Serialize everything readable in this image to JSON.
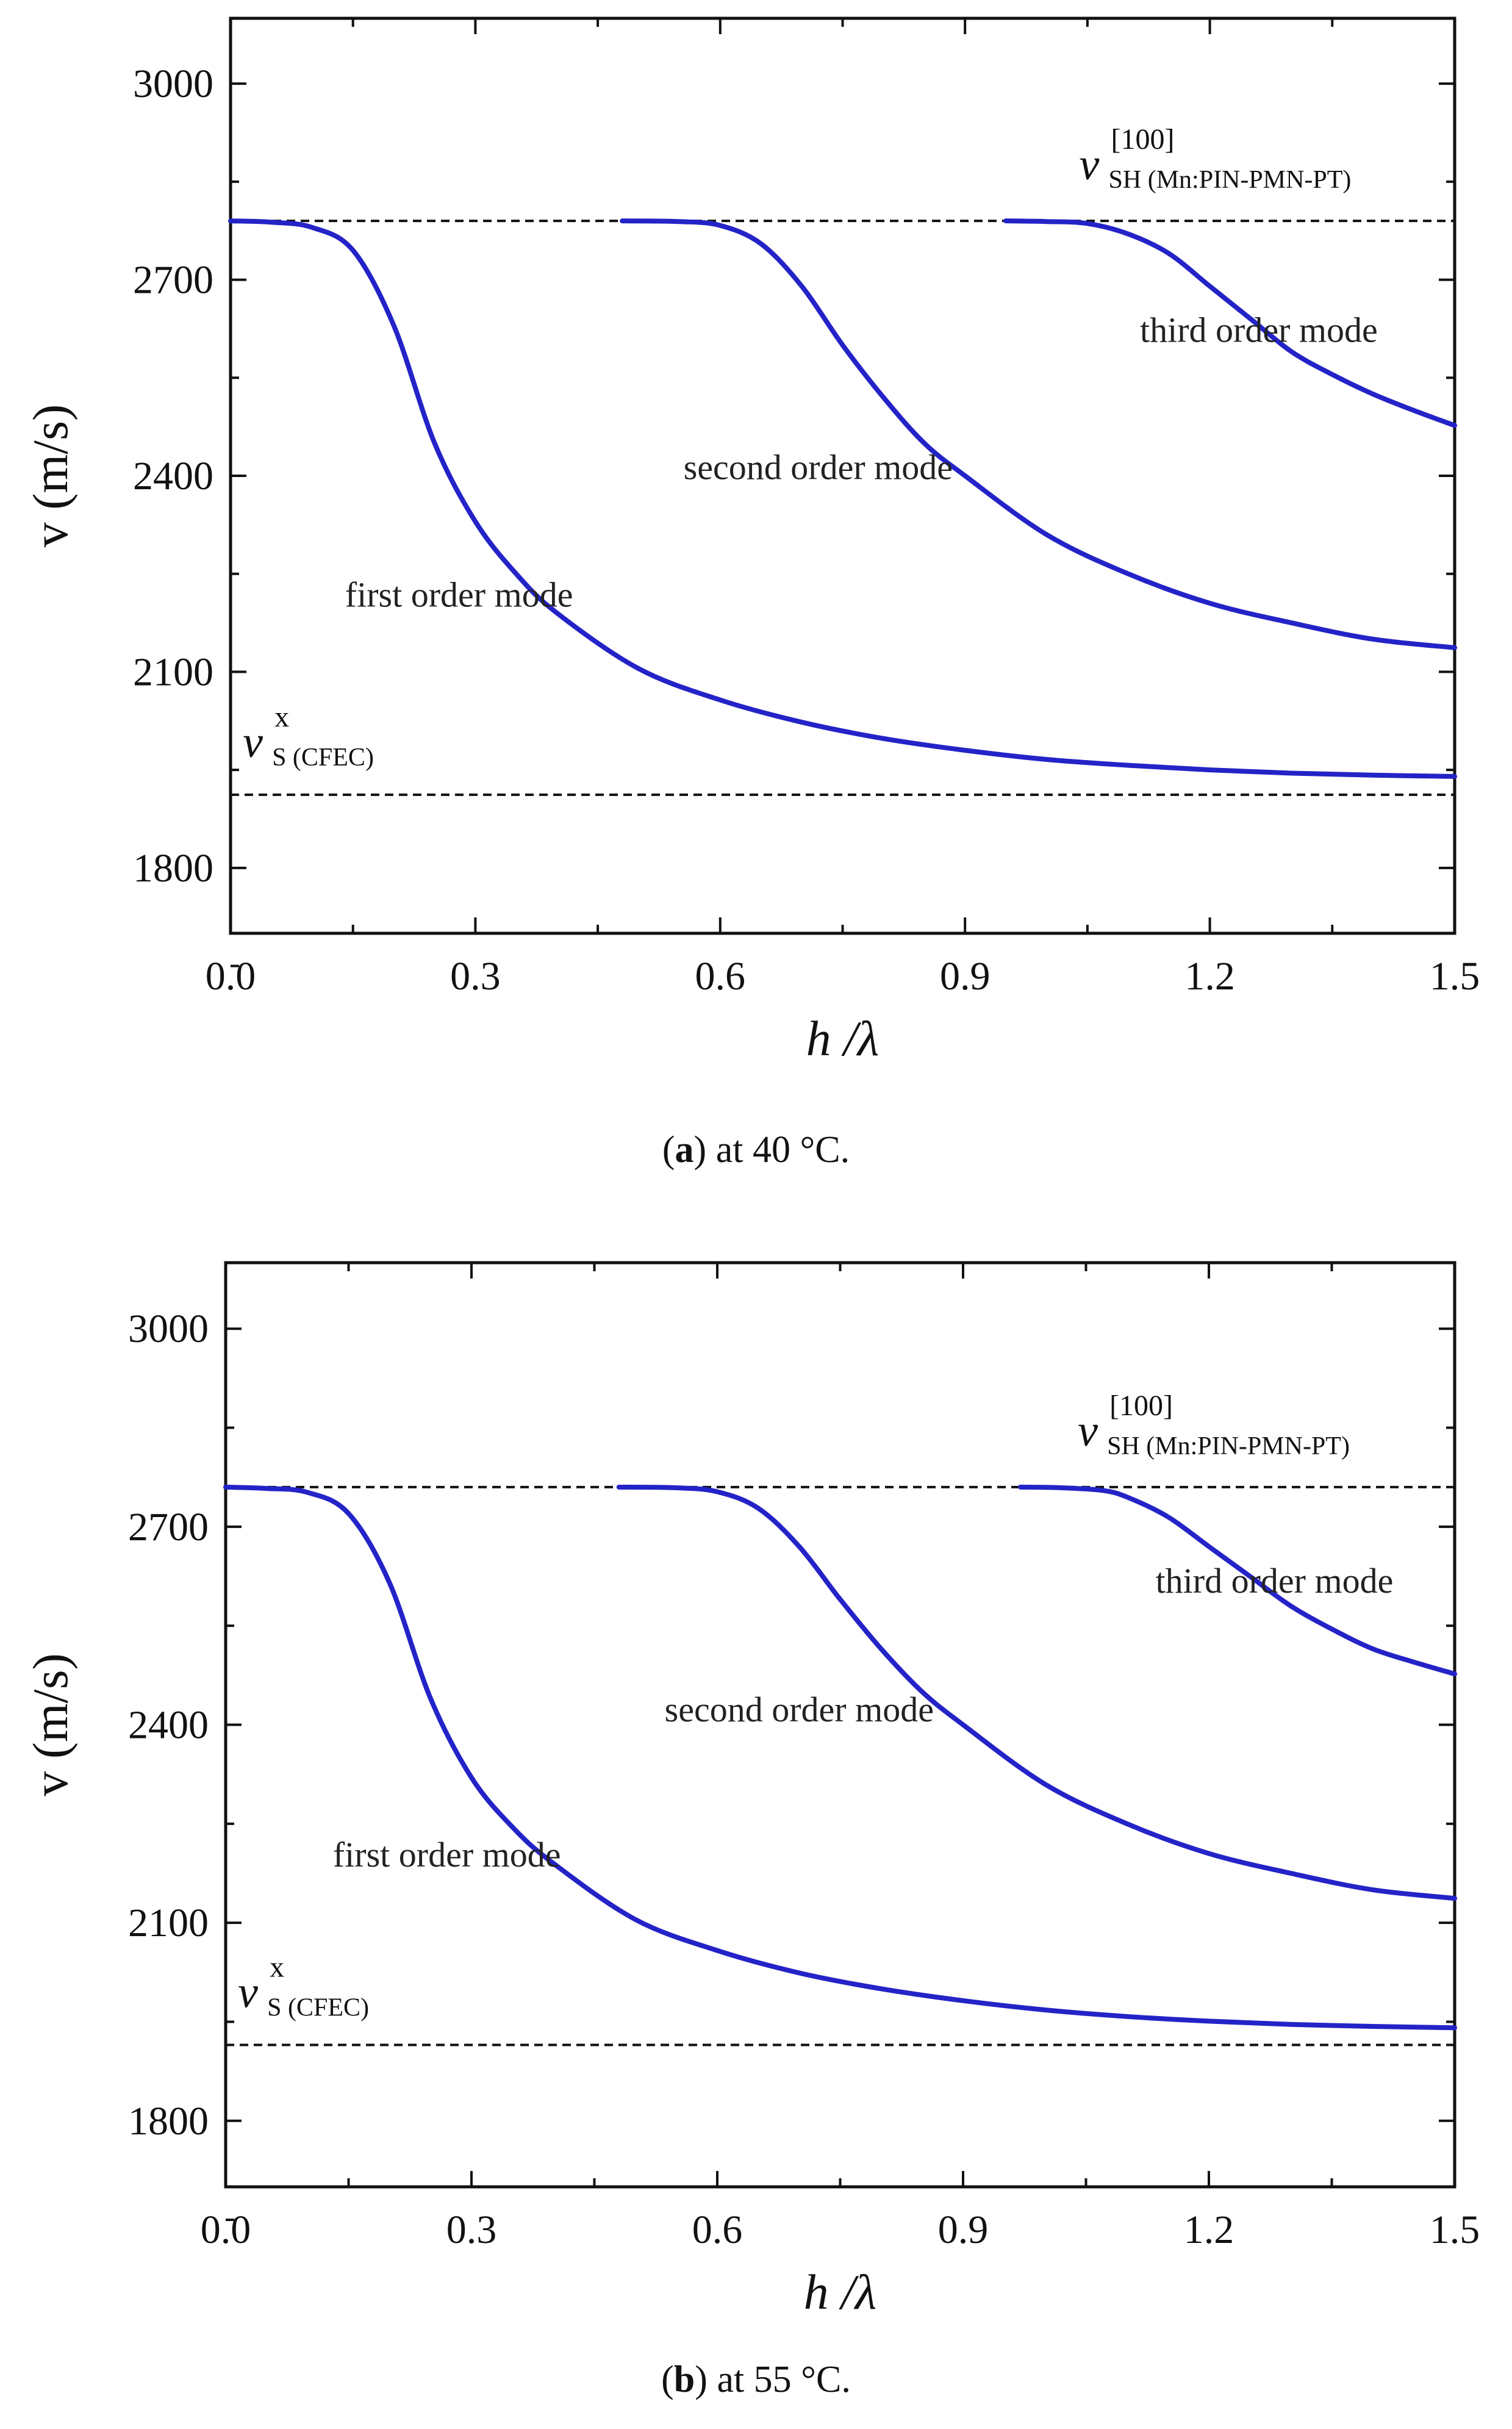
{
  "chart_data": [
    {
      "type": "line",
      "panel_label": "a",
      "caption": "at 40 °C.",
      "xlabel": "h /λ",
      "ylabel": "v (m/s)",
      "xlim": [
        0.0,
        1.5
      ],
      "ylim": [
        1700,
        3100
      ],
      "xticks": [
        "0.0",
        "0.3",
        "0.6",
        "0.9",
        "1.2",
        "1.5"
      ],
      "yticks": [
        "1800",
        "2100",
        "2400",
        "2700",
        "3000"
      ],
      "reference_lines": [
        {
          "name": "v_SH_100_MnPIN-PMN-PT",
          "symbol": "v",
          "sup": "[100]",
          "sub": "SH (Mn:PIN-PMN-PT)",
          "value": 2790
        },
        {
          "name": "v_S_x_CFEC",
          "symbol": "v",
          "sup": "x",
          "sub": "S (CFEC)",
          "value": 1912
        }
      ],
      "series": [
        {
          "name": "first order mode",
          "x": [
            0.0,
            0.05,
            0.1,
            0.15,
            0.2,
            0.25,
            0.3,
            0.35,
            0.4,
            0.5,
            0.6,
            0.7,
            0.8,
            0.9,
            1.0,
            1.1,
            1.2,
            1.3,
            1.4,
            1.5
          ],
          "y": [
            2790,
            2788,
            2780,
            2745,
            2630,
            2450,
            2330,
            2250,
            2190,
            2105,
            2057,
            2023,
            1998,
            1980,
            1966,
            1957,
            1950,
            1945,
            1942,
            1940
          ]
        },
        {
          "name": "second order mode",
          "x": [
            0.48,
            0.55,
            0.6,
            0.65,
            0.7,
            0.75,
            0.8,
            0.85,
            0.9,
            1.0,
            1.1,
            1.2,
            1.3,
            1.4,
            1.5
          ],
          "y": [
            2790,
            2789,
            2783,
            2755,
            2690,
            2600,
            2520,
            2450,
            2400,
            2310,
            2250,
            2205,
            2175,
            2150,
            2137
          ]
        },
        {
          "name": "third order mode",
          "x": [
            0.95,
            1.0,
            1.05,
            1.1,
            1.15,
            1.2,
            1.25,
            1.3,
            1.35,
            1.4,
            1.45,
            1.5
          ],
          "y": [
            2790,
            2789,
            2786,
            2770,
            2740,
            2690,
            2640,
            2590,
            2555,
            2525,
            2500,
            2477
          ]
        }
      ],
      "annotations": [
        "first order mode",
        "second order mode",
        "third order mode"
      ]
    },
    {
      "type": "line",
      "panel_label": "b",
      "caption": "at 55 °C.",
      "xlabel": "h /λ",
      "ylabel": "v (m/s)",
      "xlim": [
        0.0,
        1.5
      ],
      "ylim": [
        1700,
        3100
      ],
      "xticks": [
        "0.0",
        "0.3",
        "0.6",
        "0.9",
        "1.2",
        "1.5"
      ],
      "yticks": [
        "1800",
        "2100",
        "2400",
        "2700",
        "3000"
      ],
      "reference_lines": [
        {
          "name": "v_SH_100_MnPIN-PMN-PT",
          "symbol": "v",
          "sup": "[100]",
          "sub": "SH (Mn:PIN-PMN-PT)",
          "value": 2760
        },
        {
          "name": "v_S_x_CFEC",
          "symbol": "v",
          "sup": "x",
          "sub": "S (CFEC)",
          "value": 1915
        }
      ],
      "series": [
        {
          "name": "first order mode",
          "x": [
            0.0,
            0.05,
            0.1,
            0.15,
            0.2,
            0.25,
            0.3,
            0.35,
            0.4,
            0.5,
            0.6,
            0.7,
            0.8,
            0.9,
            1.0,
            1.1,
            1.2,
            1.3,
            1.4,
            1.5
          ],
          "y": [
            2760,
            2758,
            2752,
            2720,
            2615,
            2440,
            2320,
            2245,
            2190,
            2105,
            2058,
            2024,
            2000,
            1982,
            1968,
            1958,
            1951,
            1946,
            1943,
            1941
          ]
        },
        {
          "name": "second order mode",
          "x": [
            0.48,
            0.55,
            0.6,
            0.65,
            0.7,
            0.75,
            0.8,
            0.85,
            0.9,
            1.0,
            1.1,
            1.2,
            1.3,
            1.4,
            1.5
          ],
          "y": [
            2760,
            2759,
            2753,
            2728,
            2670,
            2590,
            2515,
            2450,
            2400,
            2310,
            2250,
            2205,
            2175,
            2150,
            2137
          ]
        },
        {
          "name": "third order mode",
          "x": [
            0.97,
            1.02,
            1.07,
            1.1,
            1.15,
            1.2,
            1.25,
            1.3,
            1.35,
            1.4,
            1.45,
            1.5
          ],
          "y": [
            2760,
            2759,
            2755,
            2745,
            2715,
            2670,
            2625,
            2580,
            2545,
            2515,
            2495,
            2477
          ]
        }
      ],
      "annotations": [
        "first order mode",
        "second order mode",
        "third order mode"
      ]
    }
  ]
}
